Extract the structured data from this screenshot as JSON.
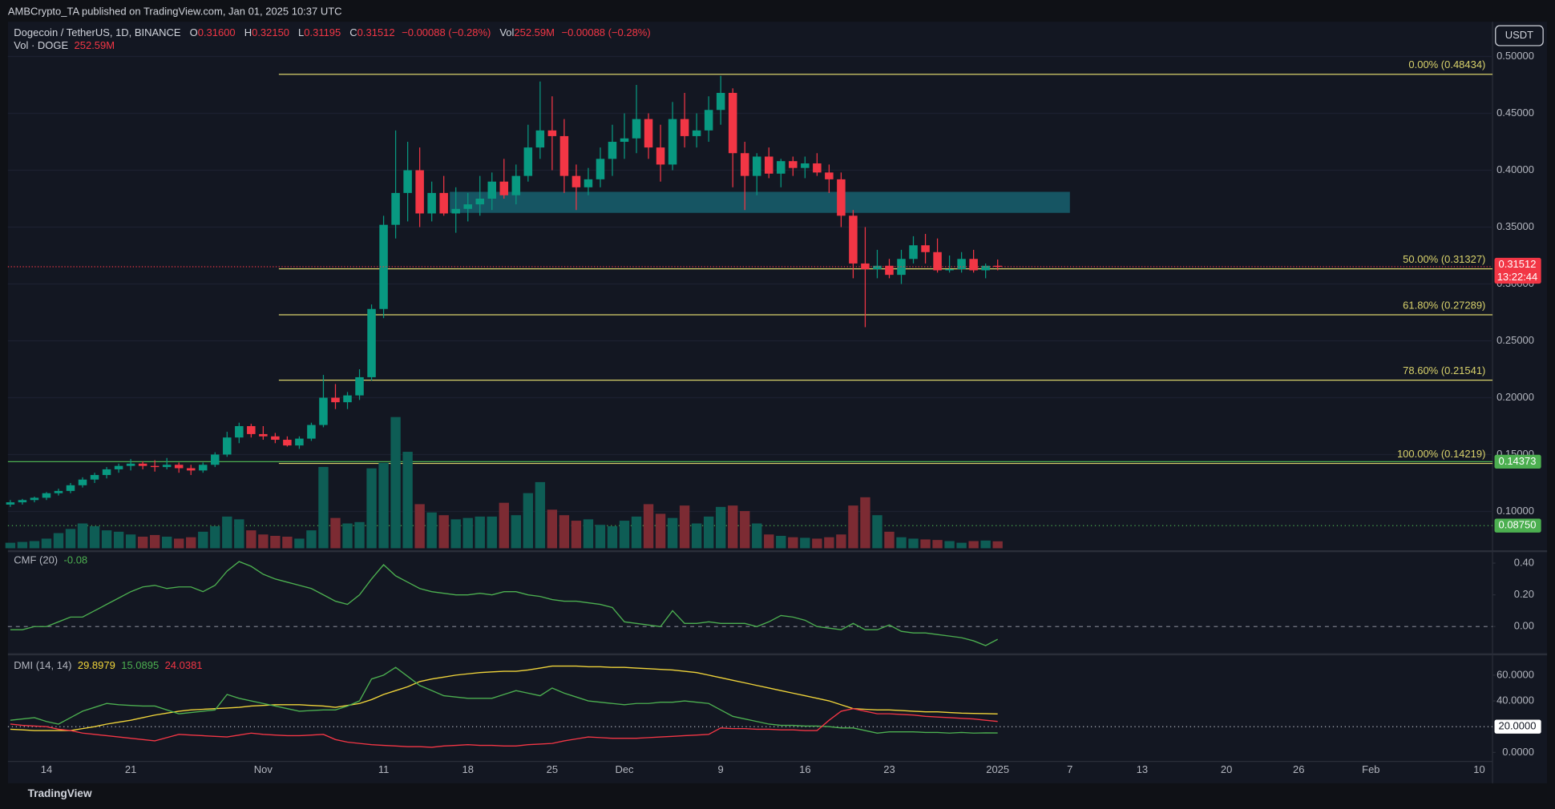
{
  "header": {
    "published": "AMBCrypto_TA published on TradingView.com, Jan 01, 2025 10:37 UTC",
    "symbol": "Dogecoin / TetherUS, 1D, BINANCE",
    "ohlc": [
      {
        "label": "O",
        "value": "0.31600"
      },
      {
        "label": "H",
        "value": "0.32150"
      },
      {
        "label": "L",
        "value": "0.31195"
      },
      {
        "label": "C",
        "value": "0.31512"
      }
    ],
    "change": "−0.00088 (−0.28%)",
    "vol_label": "Vol",
    "vol_value": "252.59M",
    "vol_change": "−0.00088 (−0.28%)",
    "vol_line_label": "Vol · DOGE",
    "vol_line_value": "252.59M"
  },
  "currency": "USDT",
  "footer": "TradingView",
  "chart_data": [
    {
      "type": "candlestick",
      "xlim": [
        -0.2,
        123.1
      ],
      "xticks": [
        {
          "value": 3,
          "label": "14"
        },
        {
          "value": 10,
          "label": "21"
        },
        {
          "value": 21,
          "label": "Nov"
        },
        {
          "value": 31,
          "label": "11"
        },
        {
          "value": 38,
          "label": "18"
        },
        {
          "value": 45,
          "label": "25"
        },
        {
          "value": 51,
          "label": "Dec"
        },
        {
          "value": 59,
          "label": "9"
        },
        {
          "value": 66,
          "label": "16"
        },
        {
          "value": 73,
          "label": "23"
        },
        {
          "value": 82,
          "label": "2025"
        },
        {
          "value": 88,
          "label": "7"
        },
        {
          "value": 94,
          "label": "13"
        },
        {
          "value": 101,
          "label": "20"
        },
        {
          "value": 107,
          "label": "26"
        },
        {
          "value": 113,
          "label": "Feb"
        },
        {
          "value": 122,
          "label": "10"
        }
      ],
      "ylim": [
        0.0676,
        0.5305
      ],
      "yticks": [
        {
          "value": 0.1,
          "label": "0.10000"
        },
        {
          "value": 0.15,
          "label": "0.15000"
        },
        {
          "value": 0.2,
          "label": "0.20000"
        },
        {
          "value": 0.25,
          "label": "0.25000"
        },
        {
          "value": 0.3,
          "label": "0.30000"
        },
        {
          "value": 0.35,
          "label": "0.35000"
        },
        {
          "value": 0.4,
          "label": "0.40000"
        },
        {
          "value": 0.45,
          "label": "0.45000"
        },
        {
          "value": 0.5,
          "label": "0.50000"
        }
      ],
      "up_color": "#089981",
      "down_color": "#f23645",
      "open": [
        0.106,
        0.108,
        0.11,
        0.112,
        0.116,
        0.118,
        0.123,
        0.128,
        0.132,
        0.137,
        0.14,
        0.142,
        0.14,
        0.139,
        0.141,
        0.138,
        0.136,
        0.141,
        0.15,
        0.165,
        0.175,
        0.168,
        0.166,
        0.163,
        0.158,
        0.164,
        0.176,
        0.2,
        0.196,
        0.202,
        0.218,
        0.278,
        0.352,
        0.38,
        0.4,
        0.362,
        0.38,
        0.362,
        0.366,
        0.37,
        0.375,
        0.39,
        0.378,
        0.395,
        0.42,
        0.435,
        0.43,
        0.395,
        0.385,
        0.392,
        0.41,
        0.425,
        0.428,
        0.445,
        0.42,
        0.405,
        0.445,
        0.43,
        0.435,
        0.453,
        0.468,
        0.415,
        0.395,
        0.412,
        0.397,
        0.408,
        0.402,
        0.406,
        0.398,
        0.392,
        0.36,
        0.318,
        0.313,
        0.316,
        0.308,
        0.322,
        0.334,
        0.328,
        0.312,
        0.313,
        0.322,
        0.312,
        0.316
      ],
      "high": [
        0.11,
        0.111,
        0.113,
        0.117,
        0.12,
        0.125,
        0.13,
        0.134,
        0.139,
        0.142,
        0.146,
        0.144,
        0.145,
        0.147,
        0.143,
        0.141,
        0.143,
        0.152,
        0.17,
        0.178,
        0.177,
        0.175,
        0.169,
        0.166,
        0.166,
        0.178,
        0.22,
        0.212,
        0.205,
        0.225,
        0.282,
        0.36,
        0.435,
        0.425,
        0.42,
        0.39,
        0.395,
        0.385,
        0.38,
        0.395,
        0.398,
        0.41,
        0.405,
        0.44,
        0.478,
        0.465,
        0.445,
        0.405,
        0.402,
        0.42,
        0.44,
        0.45,
        0.475,
        0.45,
        0.44,
        0.46,
        0.468,
        0.45,
        0.465,
        0.483,
        0.472,
        0.425,
        0.415,
        0.42,
        0.41,
        0.412,
        0.412,
        0.415,
        0.405,
        0.398,
        0.365,
        0.35,
        0.33,
        0.322,
        0.33,
        0.342,
        0.344,
        0.34,
        0.325,
        0.328,
        0.33,
        0.318,
        0.3215
      ],
      "low": [
        0.104,
        0.106,
        0.108,
        0.11,
        0.114,
        0.116,
        0.121,
        0.125,
        0.129,
        0.134,
        0.136,
        0.137,
        0.135,
        0.137,
        0.134,
        0.132,
        0.134,
        0.139,
        0.148,
        0.16,
        0.165,
        0.163,
        0.16,
        0.157,
        0.155,
        0.162,
        0.174,
        0.19,
        0.19,
        0.198,
        0.215,
        0.27,
        0.34,
        0.355,
        0.35,
        0.355,
        0.36,
        0.345,
        0.355,
        0.36,
        0.365,
        0.375,
        0.37,
        0.39,
        0.41,
        0.4,
        0.38,
        0.365,
        0.378,
        0.385,
        0.395,
        0.41,
        0.415,
        0.41,
        0.39,
        0.4,
        0.42,
        0.42,
        0.425,
        0.44,
        0.385,
        0.365,
        0.378,
        0.393,
        0.385,
        0.395,
        0.393,
        0.395,
        0.38,
        0.35,
        0.305,
        0.262,
        0.305,
        0.305,
        0.3,
        0.318,
        0.318,
        0.31,
        0.31,
        0.31,
        0.31,
        0.305,
        0.31195
      ],
      "close": [
        0.108,
        0.11,
        0.112,
        0.116,
        0.118,
        0.123,
        0.128,
        0.132,
        0.137,
        0.14,
        0.142,
        0.14,
        0.139,
        0.141,
        0.138,
        0.136,
        0.141,
        0.15,
        0.165,
        0.175,
        0.168,
        0.166,
        0.163,
        0.158,
        0.164,
        0.176,
        0.2,
        0.196,
        0.202,
        0.218,
        0.278,
        0.352,
        0.38,
        0.4,
        0.362,
        0.38,
        0.362,
        0.366,
        0.37,
        0.375,
        0.39,
        0.378,
        0.395,
        0.42,
        0.435,
        0.43,
        0.395,
        0.385,
        0.392,
        0.41,
        0.425,
        0.428,
        0.445,
        0.42,
        0.405,
        0.445,
        0.43,
        0.435,
        0.453,
        0.468,
        0.415,
        0.395,
        0.412,
        0.397,
        0.408,
        0.402,
        0.406,
        0.398,
        0.392,
        0.36,
        0.318,
        0.313,
        0.316,
        0.308,
        0.322,
        0.334,
        0.328,
        0.312,
        0.313,
        0.322,
        0.312,
        0.316,
        0.31512
      ],
      "fib_start": 22.3,
      "fib_end": 123.1,
      "fib_color": "#d9d26b",
      "fib_levels": [
        {
          "value": 0.48434,
          "label": "0.00% (0.48434)"
        },
        {
          "value": 0.31327,
          "label": "50.00% (0.31327)"
        },
        {
          "value": 0.27289,
          "label": "61.80% (0.27289)"
        },
        {
          "value": 0.21541,
          "label": "78.60% (0.21541)"
        },
        {
          "value": 0.14219,
          "label": "100.00% (0.14219)"
        }
      ],
      "price_lines": [
        {
          "value": 0.14373,
          "label": "0.14373",
          "color": "#4caf50",
          "dashed": false
        },
        {
          "value": 0.0875,
          "label": "0.08750",
          "color": "#4caf50",
          "dashed": true
        }
      ],
      "last_price": {
        "value": 0.31512,
        "label": "0.31512",
        "countdown": "13:22:44",
        "color": "#f23645"
      },
      "zone": {
        "ylim": [
          0.3625,
          0.381
        ],
        "xlim": [
          36.5,
          88
        ],
        "color": "#17606f"
      }
    },
    {
      "type": "bar",
      "ylim": [
        0,
        19100
      ],
      "up_color": "#0e5d55",
      "down_color": "#7c2b33",
      "values": [
        200,
        230,
        260,
        350,
        550,
        700,
        900,
        800,
        650,
        600,
        500,
        420,
        480,
        420,
        350,
        400,
        600,
        800,
        1150,
        1050,
        650,
        500,
        450,
        420,
        350,
        650,
        2950,
        1100,
        900,
        950,
        2900,
        3100,
        4760,
        3500,
        1600,
        1300,
        1200,
        1050,
        1100,
        1150,
        1150,
        1650,
        1200,
        2000,
        2400,
        1400,
        1200,
        1000,
        1050,
        850,
        800,
        1000,
        1150,
        1600,
        1250,
        1100,
        1550,
        900,
        1150,
        1500,
        1550,
        1350,
        900,
        500,
        450,
        400,
        380,
        350,
        400,
        500,
        1550,
        1850,
        1200,
        600,
        400,
        350,
        320,
        300,
        260,
        200,
        260,
        280,
        252.59
      ]
    },
    {
      "type": "line",
      "title": "CMF (20)",
      "color": "#4caf50",
      "ylim": [
        -0.1625,
        0.4625
      ],
      "yticks": [
        {
          "value": 0.4,
          "label": "0.40"
        },
        {
          "value": 0.2,
          "label": "0.20"
        },
        {
          "value": 0,
          "label": "0.00"
        }
      ],
      "zero_line": true,
      "values": [
        -0.02,
        -0.02,
        0.0,
        0.0,
        0.03,
        0.06,
        0.06,
        0.1,
        0.14,
        0.18,
        0.22,
        0.25,
        0.26,
        0.24,
        0.25,
        0.25,
        0.22,
        0.26,
        0.35,
        0.41,
        0.38,
        0.33,
        0.3,
        0.28,
        0.26,
        0.24,
        0.2,
        0.16,
        0.14,
        0.2,
        0.3,
        0.39,
        0.32,
        0.28,
        0.24,
        0.22,
        0.21,
        0.2,
        0.2,
        0.21,
        0.2,
        0.22,
        0.22,
        0.2,
        0.19,
        0.17,
        0.16,
        0.16,
        0.15,
        0.14,
        0.12,
        0.03,
        0.02,
        0.01,
        0.0,
        0.1,
        0.02,
        0.02,
        0.03,
        0.02,
        0.02,
        0.02,
        0.0,
        0.03,
        0.07,
        0.06,
        0.04,
        0.0,
        -0.01,
        -0.02,
        0.02,
        -0.02,
        -0.02,
        0.01,
        -0.03,
        -0.04,
        -0.04,
        -0.05,
        -0.06,
        -0.07,
        -0.09,
        -0.12,
        -0.08
      ]
    },
    {
      "type": "line",
      "title": "DMI (14, 14)",
      "ylim": [
        -6.2,
        74.6
      ],
      "yticks": [
        {
          "value": 60,
          "label": "60.0000"
        },
        {
          "value": 40,
          "label": "40.0000"
        },
        {
          "value": 0,
          "label": "0.0000"
        }
      ],
      "hline": {
        "value": 20,
        "label": "20.0000"
      },
      "series": [
        {
          "color": "#f0d43a",
          "values": [
            18,
            17.5,
            17,
            17,
            17,
            17,
            18.5,
            20,
            22,
            23.5,
            25,
            27,
            29,
            30.5,
            32,
            33,
            33.5,
            34,
            34.5,
            35,
            36,
            36.5,
            37,
            37,
            37,
            36.5,
            36,
            35,
            36.5,
            38,
            41,
            45,
            48,
            51,
            55,
            57,
            58.5,
            60,
            61,
            62,
            62.5,
            63,
            63,
            64,
            65.5,
            67,
            67,
            67,
            66.5,
            66.5,
            66,
            66,
            65.5,
            65,
            64.5,
            64,
            63,
            62,
            60,
            58,
            56,
            54,
            52,
            50,
            48,
            46,
            44,
            42,
            40,
            37,
            34,
            33.5,
            33,
            33,
            32.5,
            32,
            31.5,
            31.5,
            31,
            30.5,
            30.3,
            30.1,
            29.8979
          ]
        },
        {
          "color": "#4caf50",
          "values": [
            25,
            26,
            27,
            24,
            22,
            27,
            32,
            35,
            38,
            37,
            36.5,
            36,
            36,
            33,
            30,
            31,
            32,
            33,
            45,
            42,
            40,
            38,
            36,
            34,
            32,
            32.5,
            33,
            33,
            36,
            40,
            57,
            60,
            66,
            59,
            52,
            48,
            44,
            43,
            42,
            42,
            42,
            45,
            48,
            46,
            44,
            50,
            46,
            43,
            40,
            39,
            38,
            37,
            38,
            38,
            39,
            39,
            40,
            39,
            38,
            33,
            28,
            26,
            24,
            22,
            21,
            21,
            20.5,
            20.5,
            20,
            19,
            19,
            17,
            15,
            16,
            16,
            16,
            15.5,
            15.5,
            15,
            15.5,
            15,
            15.2,
            15.0895
          ]
        },
        {
          "color": "#f23645",
          "values": [
            22,
            21,
            20.5,
            20,
            18,
            17,
            15,
            14,
            13,
            12,
            11,
            10,
            9,
            11.5,
            14,
            13.5,
            13,
            12.5,
            12,
            13.5,
            15,
            14,
            13.5,
            13,
            13,
            13.5,
            14,
            10,
            8,
            7,
            6,
            5.5,
            5,
            4.5,
            4.5,
            4,
            5,
            5.5,
            6,
            5.5,
            5.5,
            5,
            5,
            6,
            6.5,
            7,
            9,
            10.5,
            12,
            11.5,
            11,
            11,
            11,
            11.5,
            12,
            12.5,
            13,
            13.5,
            14,
            19,
            18.5,
            18.5,
            18,
            18,
            17.5,
            17.5,
            17,
            17,
            25,
            32,
            34,
            32,
            30,
            30,
            29.5,
            29,
            28,
            27.5,
            27,
            26.5,
            26,
            25,
            24.0381
          ]
        }
      ]
    }
  ]
}
